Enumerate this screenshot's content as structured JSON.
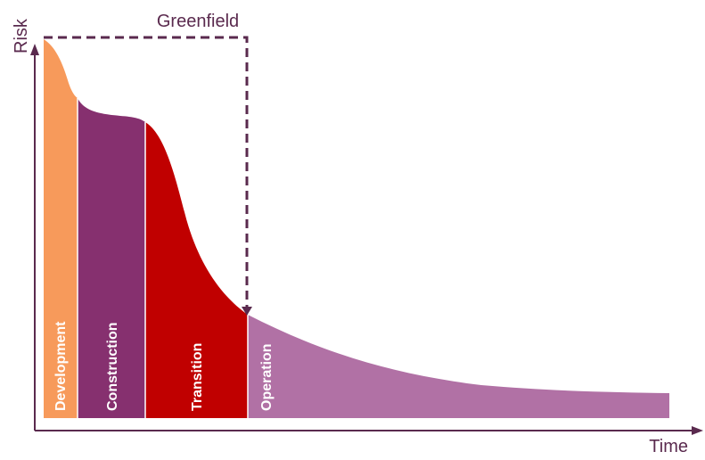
{
  "diagram": {
    "y_axis_label": "Risk",
    "x_axis_label": "Time",
    "greenfield_label": "Greenfield",
    "phases": [
      {
        "label": "Development",
        "color": "#f79a5b"
      },
      {
        "label": "Construction",
        "color": "#86306f"
      },
      {
        "label": "Transition",
        "color": "#c00000"
      },
      {
        "label": "Operation",
        "color": "#b171a5"
      }
    ],
    "axis_color": "#5a2a4e",
    "greenfield_line_color": "#5a2a4e"
  }
}
